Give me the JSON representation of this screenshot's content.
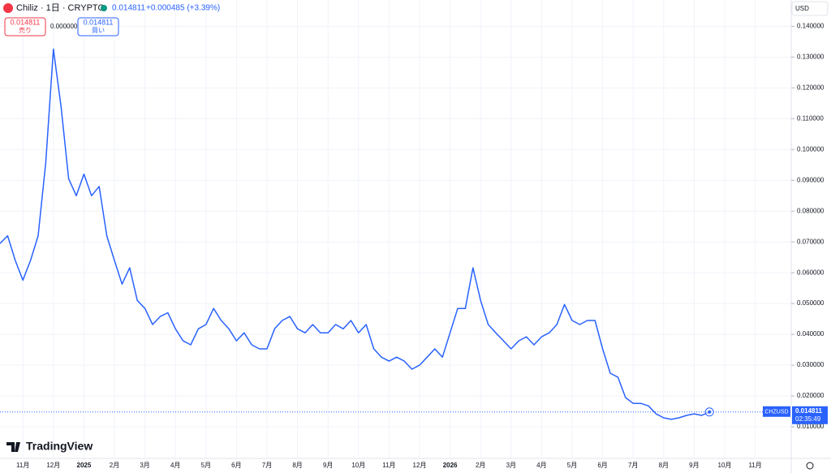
{
  "header": {
    "symbol": "Chiliz · 1日 · CRYPTO",
    "last": "0.014811",
    "change": "+0.000485 (+3.39%)",
    "sell_price": "0.014811",
    "sell_label": "売り",
    "spread": "0.000000",
    "buy_price": "0.014811",
    "buy_label": "買い",
    "currency": "USD",
    "tag_price": "0.014811",
    "countdown": "02:35:49",
    "brand": "TradingView"
  },
  "chart_data": {
    "type": "line",
    "categories": [
      null,
      null,
      null,
      "11月",
      null,
      null,
      null,
      "12月",
      null,
      null,
      null,
      "2025",
      null,
      null,
      null,
      "2月",
      null,
      null,
      null,
      "3月",
      null,
      null,
      null,
      "4月",
      null,
      null,
      null,
      "5月",
      null,
      null,
      null,
      "6月",
      null,
      null,
      null,
      "7月",
      null,
      null,
      null,
      "8月",
      null,
      null,
      null,
      "9月",
      null,
      null,
      null,
      "10月",
      null,
      null,
      null,
      "11月",
      null,
      null,
      null,
      "12月",
      null,
      null,
      null,
      "2026",
      null,
      null,
      null,
      "2月",
      null,
      null,
      null,
      "3月",
      null,
      null,
      null,
      "4月",
      null,
      null,
      null,
      "5月",
      null,
      null,
      null,
      "6月",
      null,
      null,
      null,
      "7月",
      null,
      null,
      null,
      "8月",
      null,
      null,
      null,
      "9月",
      null,
      null,
      null,
      "10月",
      null,
      null,
      null,
      "11月"
    ],
    "series": [
      {
        "name": "CHZUSD",
        "color": "#2962ff",
        "values": [
          0.0695,
          0.072,
          0.064,
          0.0576,
          0.064,
          0.072,
          0.0958,
          0.1326,
          0.114,
          0.0905,
          0.085,
          0.092,
          0.085,
          0.088,
          0.072,
          0.064,
          0.0563,
          0.0616,
          0.051,
          0.0484,
          0.0432,
          0.0458,
          0.047,
          0.0418,
          0.0379,
          0.0366,
          0.0418,
          0.0432,
          0.0484,
          0.0445,
          0.0418,
          0.0379,
          0.0405,
          0.0366,
          0.0353,
          0.0353,
          0.0418,
          0.0445,
          0.0458,
          0.0418,
          0.0405,
          0.0432,
          0.0405,
          0.0405,
          0.0432,
          0.0418,
          0.0445,
          0.0405,
          0.0432,
          0.0353,
          0.0326,
          0.0313,
          0.0326,
          0.0313,
          0.0287,
          0.03,
          0.0326,
          0.0353,
          0.0326,
          0.0405,
          0.0484,
          0.0484,
          0.0616,
          0.051,
          0.0432,
          0.0405,
          0.0379,
          0.0353,
          0.0379,
          0.0392,
          0.0366,
          0.0392,
          0.0405,
          0.0432,
          0.0497,
          0.0445,
          0.0432,
          0.0445,
          0.0445,
          0.0353,
          0.0274,
          0.0261,
          0.0195,
          0.0176,
          0.0176,
          0.0168,
          0.0142,
          0.0129,
          0.0124,
          0.0129,
          0.0137,
          0.0142,
          0.0137,
          0.014811,
          null,
          null,
          null,
          null,
          null,
          null
        ]
      }
    ],
    "ylim": [
      0,
      0.148
    ],
    "yticks": [
      {
        "value": 0.01,
        "label": "0.010000"
      },
      {
        "value": 0.02,
        "label": "0.020000"
      },
      {
        "value": 0.03,
        "label": "0.030000"
      },
      {
        "value": 0.04,
        "label": "0.040000"
      },
      {
        "value": 0.05,
        "label": "0.050000"
      },
      {
        "value": 0.06,
        "label": "0.060000"
      },
      {
        "value": 0.07,
        "label": "0.070000"
      },
      {
        "value": 0.08,
        "label": "0.080000"
      },
      {
        "value": 0.09,
        "label": "0.090000"
      },
      {
        "value": 0.1,
        "label": "0.100000"
      },
      {
        "value": 0.11,
        "label": "0.110000"
      },
      {
        "value": 0.12,
        "label": "0.120000"
      },
      {
        "value": 0.13,
        "label": "0.130000"
      },
      {
        "value": 0.14,
        "label": "0.140000"
      }
    ],
    "grid": true
  }
}
